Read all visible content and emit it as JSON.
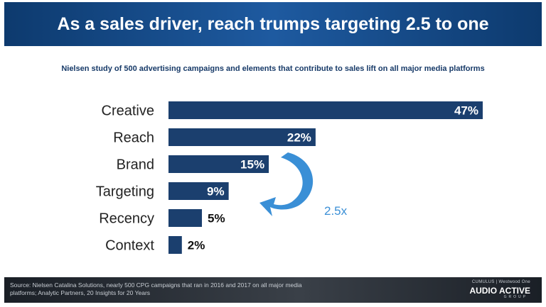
{
  "header": {
    "title": "As a sales driver, reach trumps targeting 2.5 to one"
  },
  "subtitle": "Nielsen study of 500 advertising campaigns and elements that contribute to sales lift on all major media platforms",
  "chart_data": {
    "type": "bar",
    "orientation": "horizontal",
    "categories": [
      "Creative",
      "Reach",
      "Brand",
      "Targeting",
      "Recency",
      "Context"
    ],
    "values": [
      47,
      22,
      15,
      9,
      5,
      2
    ],
    "data_labels": [
      "47%",
      "22%",
      "15%",
      "9%",
      "5%",
      "2%"
    ],
    "bar_color": "#1b3f6e",
    "annotation": {
      "text": "2.5x",
      "color": "#3a8fd6",
      "from": "Reach",
      "to": "Targeting"
    },
    "xlim": [
      0,
      50
    ],
    "grid": false,
    "legend": "none"
  },
  "footer": {
    "source_line1": "Source: Nielsen Catalina Solutions, nearly 500 CPG campaigns that ran in 2016 and 2017 on all major media",
    "source_line2": "platforms; Analytic Partners, 20 Insights for 20 Years",
    "logo_top": "CUMULUS | Westwood One",
    "logo_main": "AUDIO ACTIVE",
    "logo_sub": "GROUP"
  }
}
